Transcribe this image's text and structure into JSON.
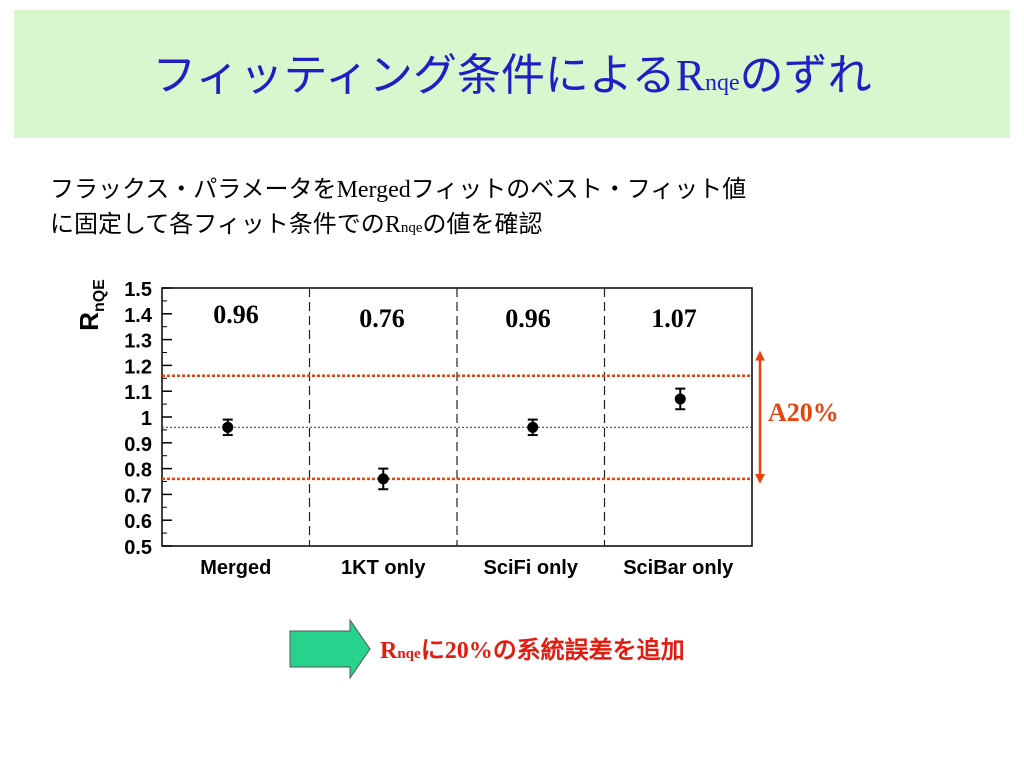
{
  "title": {
    "prefix": "フィッティング条件による",
    "r_symbol": "R",
    "r_subscript": "nqe",
    "suffix": "のずれ"
  },
  "body": {
    "line1_pre": "フラックス・パラメータを",
    "line1_merged": "Merged",
    "line1_post": "フィットのベスト・フィット値",
    "line2_pre": "に固定して各フィット条件での",
    "line2_r": "R",
    "line2_sub": "nqe",
    "line2_post": "の値を確認"
  },
  "chart_data": {
    "type": "scatter",
    "ylabel_main": "R",
    "ylabel_sub": "nQE",
    "ylim": [
      0.5,
      1.5
    ],
    "yticks": [
      "1.5",
      "1.4",
      "1.3",
      "1.2",
      "1.1",
      "1",
      "0.9",
      "0.8",
      "0.7",
      "0.6",
      "0.5"
    ],
    "categories": [
      "Merged",
      "1KT only",
      "SciFi only",
      "SciBar only"
    ],
    "values": [
      0.96,
      0.76,
      0.96,
      1.07
    ],
    "errors": [
      0.03,
      0.04,
      0.03,
      0.04
    ],
    "value_labels": [
      "0.96",
      "0.76",
      "0.96",
      "1.07"
    ],
    "reference_line": 0.96,
    "band": [
      1.16,
      0.76
    ],
    "band_label": "A20%"
  },
  "callout": {
    "r_symbol": "R",
    "r_subscript": "nqe",
    "text_ni": "に",
    "text_percent": "20%",
    "text_rest": "の系統誤差を追加"
  },
  "colors": {
    "title_text": "#1f1fc4",
    "title_bg": "#d8f7cf",
    "band_line": "#e8420e",
    "reference_line": "#3a3acf",
    "arrow_fill": "#27d38c",
    "callout_text": "#e31b0e"
  }
}
